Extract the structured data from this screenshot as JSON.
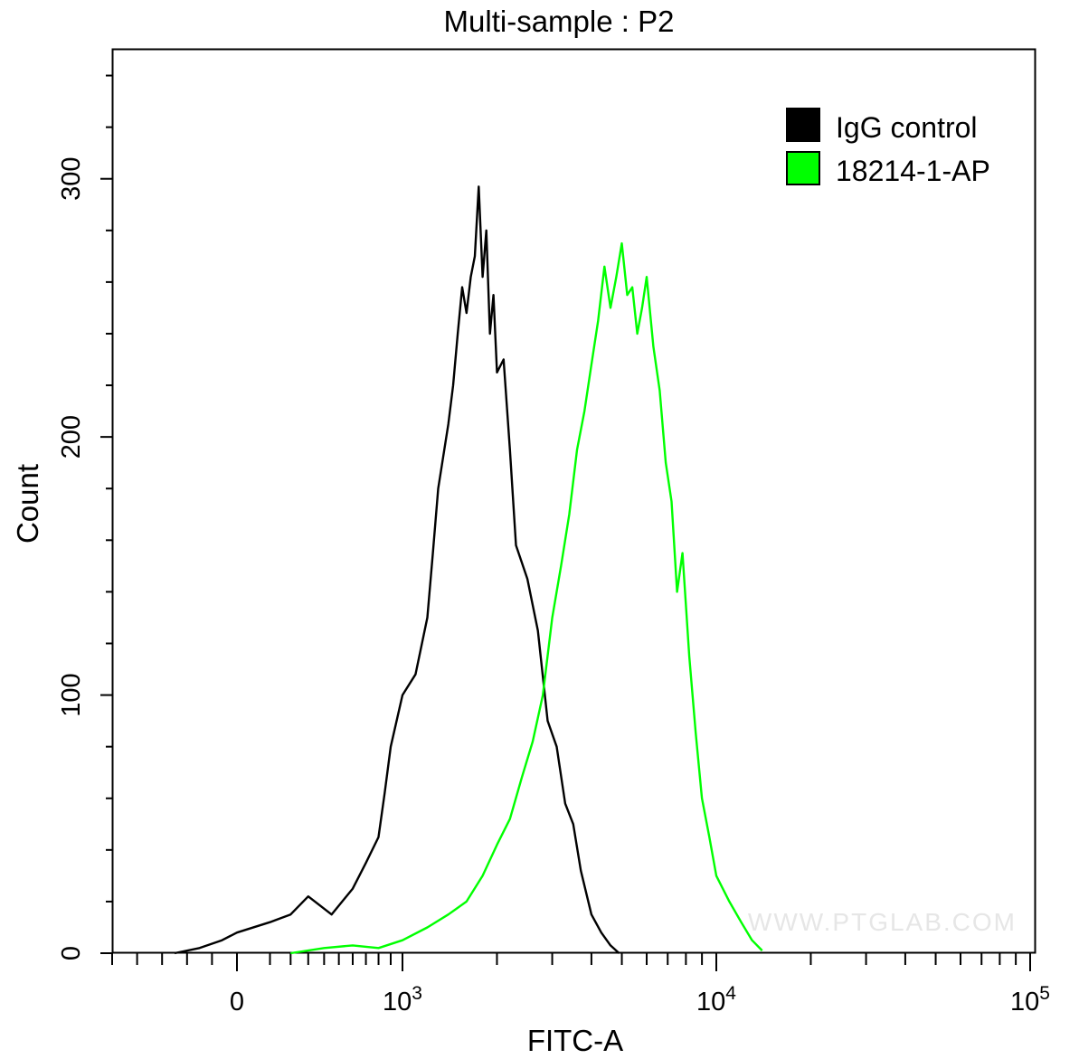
{
  "chart_data": {
    "type": "line",
    "title": "Multi-sample : P2",
    "xlabel": "FITC-A",
    "ylabel": "Count",
    "x_scale": "biexponential",
    "xlim": [
      -500,
      100000
    ],
    "ylim": [
      0,
      350
    ],
    "y_ticks": [
      {
        "value": 0,
        "label": "0"
      },
      {
        "value": 100,
        "label": "100"
      },
      {
        "value": 200,
        "label": "200"
      },
      {
        "value": 300,
        "label": "300"
      }
    ],
    "x_ticks": [
      {
        "value": 0,
        "label": "0",
        "sup": ""
      },
      {
        "value": 1000,
        "label": "10",
        "sup": "3"
      },
      {
        "value": 10000,
        "label": "10",
        "sup": "4"
      },
      {
        "value": 100000,
        "label": "10",
        "sup": "5"
      }
    ],
    "grid": false,
    "legend_position": "top-right",
    "series": [
      {
        "name": "IgG control",
        "color": "#000000",
        "x": [
          -250,
          -150,
          -60,
          0,
          100,
          200,
          300,
          450,
          600,
          700,
          800,
          850,
          900,
          1000,
          1100,
          1200,
          1250,
          1300,
          1400,
          1450,
          1500,
          1550,
          1600,
          1650,
          1700,
          1750,
          1800,
          1850,
          1900,
          1950,
          2000,
          2100,
          2200,
          2300,
          2500,
          2700,
          2900,
          3100,
          3300,
          3500,
          3700,
          4000,
          4300,
          4600,
          4900
        ],
        "y": [
          0,
          2,
          5,
          8,
          12,
          15,
          22,
          15,
          25,
          35,
          45,
          62,
          80,
          100,
          108,
          130,
          155,
          180,
          205,
          220,
          240,
          258,
          248,
          262,
          270,
          297,
          262,
          280,
          240,
          255,
          225,
          230,
          195,
          158,
          145,
          125,
          90,
          80,
          58,
          50,
          32,
          15,
          8,
          3,
          0
        ]
      },
      {
        "name": "18214-1-AP",
        "color": "#00ff00",
        "x": [
          200,
          400,
          600,
          800,
          1000,
          1200,
          1400,
          1600,
          1800,
          2000,
          2200,
          2400,
          2600,
          2800,
          3000,
          3200,
          3400,
          3600,
          3800,
          4000,
          4200,
          4400,
          4600,
          4800,
          5000,
          5200,
          5400,
          5600,
          5800,
          6000,
          6300,
          6600,
          6900,
          7200,
          7500,
          7800,
          8200,
          8600,
          9000,
          9500,
          10000,
          11000,
          12000,
          13000,
          14000
        ],
        "y": [
          0,
          2,
          3,
          2,
          5,
          10,
          15,
          20,
          30,
          42,
          52,
          68,
          82,
          100,
          130,
          150,
          170,
          195,
          210,
          228,
          245,
          266,
          250,
          262,
          275,
          255,
          258,
          240,
          250,
          262,
          235,
          218,
          190,
          175,
          140,
          155,
          115,
          85,
          60,
          45,
          30,
          20,
          12,
          5,
          1
        ]
      }
    ]
  },
  "watermark": "WWW.PTGLAB.COM"
}
